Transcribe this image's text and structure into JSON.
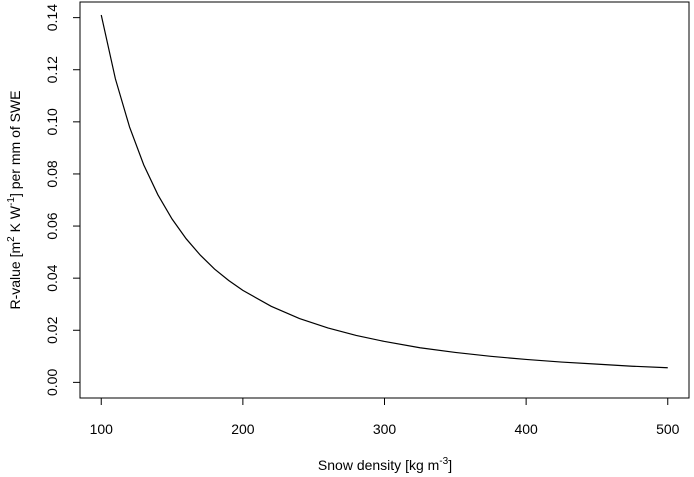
{
  "chart_data": {
    "type": "line",
    "title": "",
    "xlabel": {
      "prefix": "Snow density [kg m",
      "sup": "-3",
      "suffix": "]"
    },
    "ylabel": {
      "p1": "R-value [m",
      "s1": "2",
      "p2": " K W",
      "s2": "-1",
      "p3": "] per mm of SWE"
    },
    "xlim": [
      85,
      515
    ],
    "ylim": [
      -0.006,
      0.146
    ],
    "x_ticks": [
      100,
      200,
      300,
      400,
      500
    ],
    "x_tick_labels": [
      "100",
      "200",
      "300",
      "400",
      "500"
    ],
    "y_ticks": [
      0.0,
      0.02,
      0.04,
      0.06,
      0.08,
      0.1,
      0.12,
      0.14
    ],
    "y_tick_labels": [
      "0.00",
      "0.02",
      "0.04",
      "0.06",
      "0.08",
      "0.10",
      "0.12",
      "0.14"
    ],
    "grid": false,
    "series": [
      {
        "color": "#000000",
        "x": [
          100,
          110,
          120,
          130,
          140,
          150,
          160,
          170,
          180,
          190,
          200,
          220,
          240,
          260,
          280,
          300,
          325,
          350,
          375,
          400,
          425,
          450,
          475,
          500
        ],
        "y": [
          0.141,
          0.1165,
          0.098,
          0.0835,
          0.072,
          0.0627,
          0.0551,
          0.0488,
          0.0435,
          0.0391,
          0.0353,
          0.0292,
          0.0245,
          0.0209,
          0.018,
          0.0157,
          0.0133,
          0.0115,
          0.01,
          0.0088,
          0.0078,
          0.007,
          0.0062,
          0.0056
        ]
      }
    ]
  }
}
